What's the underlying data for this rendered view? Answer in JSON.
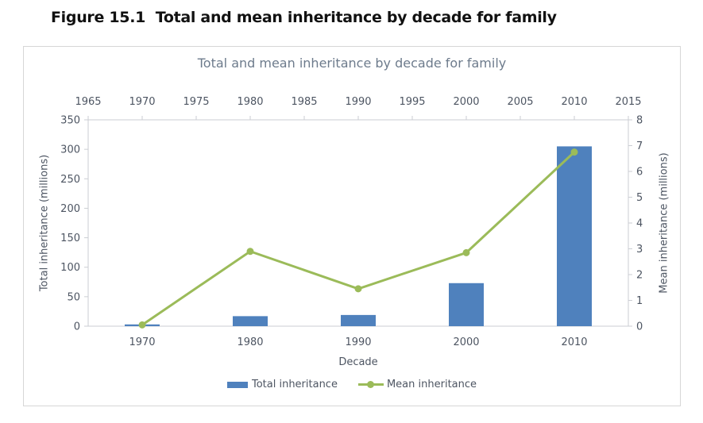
{
  "figure": {
    "caption": "Figure 15.1  Total and mean inheritance by decade for family"
  },
  "chart_data": {
    "type": "bar",
    "title": "Total and mean inheritance by decade for family",
    "categories": [
      "1970",
      "1980",
      "1990",
      "2000",
      "2010"
    ],
    "series": [
      {
        "name": "Total inheritance",
        "type": "bar",
        "axis": "left",
        "color": "#4f81bd",
        "values": [
          3,
          17,
          19,
          73,
          305
        ]
      },
      {
        "name": "Mean inheritance",
        "type": "line",
        "axis": "right",
        "color": "#9bbb59",
        "values": [
          0.05,
          2.9,
          1.45,
          2.85,
          6.75
        ]
      }
    ],
    "left_axis": {
      "title": "Total inheritance (millions)",
      "min": 0,
      "max": 350,
      "ticks": [
        "0",
        "50",
        "100",
        "150",
        "200",
        "250",
        "300",
        "350"
      ]
    },
    "right_axis": {
      "title": "Mean inheritance (millions)",
      "min": 0,
      "max": 8,
      "ticks": [
        "0",
        "1",
        "2",
        "3",
        "4",
        "5",
        "6",
        "7",
        "8"
      ]
    },
    "top_axis": {
      "min": 1965,
      "max": 2015,
      "ticks": [
        "1965",
        "1970",
        "1975",
        "1980",
        "1985",
        "1990",
        "1995",
        "2000",
        "2005",
        "2010",
        "2015"
      ]
    },
    "x_axis": {
      "title": "Decade"
    },
    "legend_position": "bottom",
    "grid": false,
    "colors": {
      "axis_line": "#cbced3",
      "tick_label": "#4d5562",
      "title": "#6d7b8c"
    }
  },
  "legend": {
    "items": [
      {
        "label": "Total inheritance"
      },
      {
        "label": "Mean inheritance"
      }
    ]
  }
}
